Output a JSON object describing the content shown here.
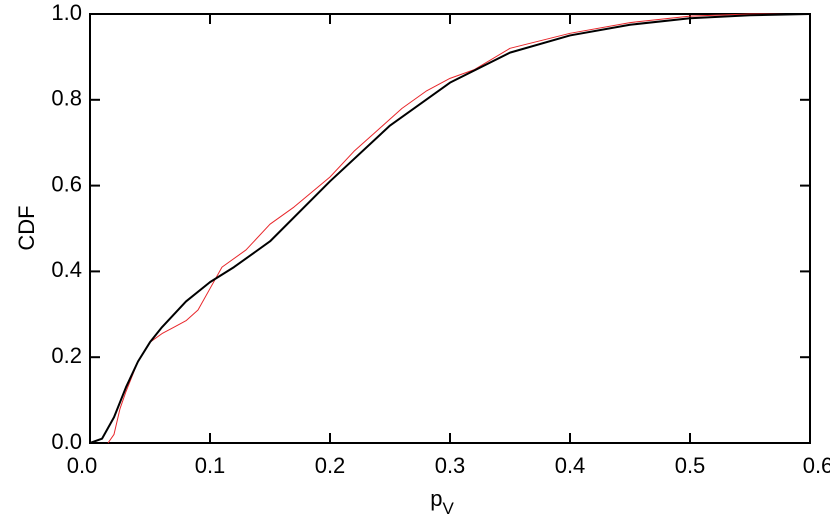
{
  "chart_data": {
    "type": "line",
    "ylabel": "CDF",
    "xlabel": "p",
    "xlabel_subscript": "V",
    "xlim": [
      0,
      0.6
    ],
    "ylim": [
      0,
      1
    ],
    "xticks": [
      {
        "value": 0,
        "label": "0.0"
      },
      0.1,
      0.2,
      0.3,
      0.4,
      0.5,
      0.6
    ],
    "yticks": [
      {
        "value": 0,
        "label": "0.0"
      },
      0.2,
      0.4,
      0.6,
      0.8,
      {
        "value": 1,
        "label": "1.0"
      }
    ],
    "series": [
      {
        "color": "#e8262a",
        "width": 1,
        "x": [
          0.015,
          0.02,
          0.025,
          0.03,
          0.04,
          0.05,
          0.06,
          0.07,
          0.08,
          0.09,
          0.1,
          0.11,
          0.13,
          0.15,
          0.17,
          0.2,
          0.22,
          0.24,
          0.26,
          0.28,
          0.3,
          0.32,
          0.35,
          0.4,
          0.45,
          0.5,
          0.55,
          0.6
        ],
        "values": [
          0,
          0.02,
          0.08,
          0.12,
          0.19,
          0.235,
          0.255,
          0.27,
          0.285,
          0.31,
          0.36,
          0.41,
          0.45,
          0.51,
          0.55,
          0.62,
          0.68,
          0.73,
          0.78,
          0.82,
          0.85,
          0.87,
          0.92,
          0.955,
          0.98,
          0.995,
          1.0,
          1.0
        ]
      },
      {
        "color": "#000000",
        "width": 2,
        "x": [
          0,
          0.01,
          0.02,
          0.03,
          0.04,
          0.05,
          0.06,
          0.08,
          0.1,
          0.12,
          0.15,
          0.2,
          0.25,
          0.3,
          0.35,
          0.4,
          0.45,
          0.5,
          0.55,
          0.6
        ],
        "values": [
          0,
          0.01,
          0.06,
          0.13,
          0.19,
          0.235,
          0.27,
          0.33,
          0.375,
          0.41,
          0.47,
          0.61,
          0.74,
          0.84,
          0.91,
          0.95,
          0.975,
          0.99,
          0.997,
          1.0
        ]
      }
    ]
  }
}
